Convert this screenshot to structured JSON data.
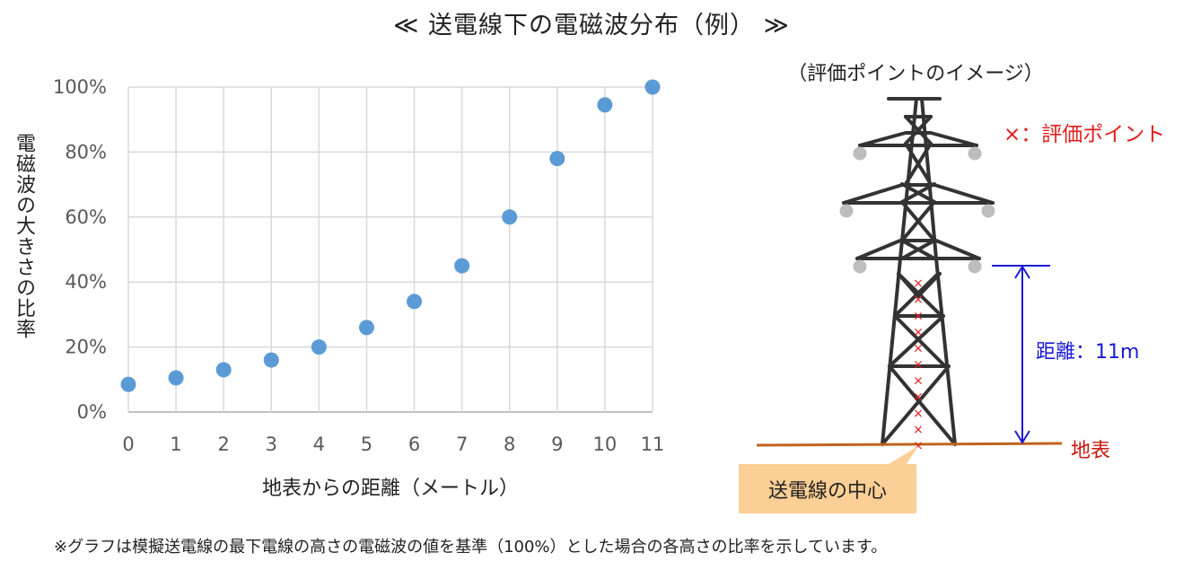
{
  "title": "≪ 送電線下の電磁波分布（例） ≫",
  "chart_data": {
    "type": "scatter",
    "title": "≪ 送電線下の電磁波分布（例） ≫",
    "xlabel": "地表からの距離（メートル）",
    "ylabel": "電磁波の大きさの比率",
    "x": [
      0,
      1,
      2,
      3,
      4,
      5,
      6,
      7,
      8,
      9,
      10,
      11
    ],
    "y": [
      8.5,
      10.5,
      13,
      16,
      20,
      26,
      34,
      45,
      60,
      78,
      94.5,
      100
    ],
    "xlim": [
      0,
      11
    ],
    "ylim": [
      0,
      100
    ],
    "yticks": [
      "0%",
      "20%",
      "40%",
      "60%",
      "80%",
      "100%"
    ],
    "xticks": [
      "0",
      "1",
      "2",
      "3",
      "4",
      "5",
      "6",
      "7",
      "8",
      "9",
      "10",
      "11"
    ],
    "grid": true,
    "marker_color": "#5b9bd5"
  },
  "diagram": {
    "caption": "（評価ポイントのイメージ）",
    "legend_eval_point": "×：評価ポイント",
    "distance_label": "距離：11m",
    "ground_label": "地表",
    "center_label": "送電線の中心",
    "eval_point_count": 11,
    "colors": {
      "tower": "#333333",
      "ground": "#c0641e",
      "distance_arrow": "#1a1ad6",
      "eval_mark": "#e0201c",
      "insulator": "#bdbdbd",
      "center_box": "#fbcf95"
    }
  },
  "footnote": "※グラフは模擬送電線の最下電線の高さの電磁波の値を基準（100%）とした場合の各高さの比率を示しています。"
}
